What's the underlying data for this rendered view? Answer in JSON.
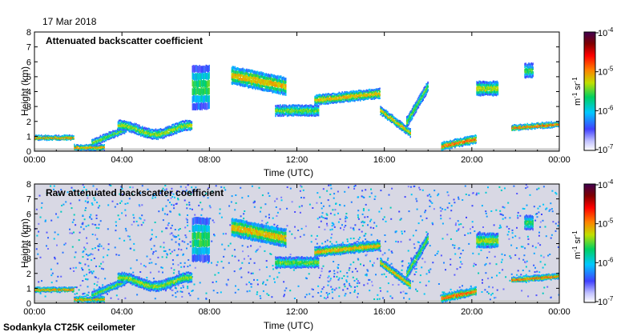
{
  "date": "17 Mar 2018",
  "footer": "Sodankyla CT25K ceilometer",
  "colors": {
    "background_clear": "#ffffff",
    "background_noise": "#d8d8e4",
    "frame": "#000000"
  },
  "chart_data": [
    {
      "type": "heatmap",
      "title": "Attenuated backscatter coefficient",
      "xlabel": "Time (UTC)",
      "ylabel": "Height (km)",
      "x_ticks": [
        "00:00",
        "04:00",
        "08:00",
        "12:00",
        "16:00",
        "20:00",
        "00:00"
      ],
      "xlim_hours": [
        0,
        24
      ],
      "y_ticks": [
        "0",
        "1",
        "2",
        "3",
        "4",
        "5",
        "6",
        "7",
        "8"
      ],
      "ylim_km": [
        0,
        8
      ],
      "colorbar": {
        "scale": "log",
        "unit_base": "m",
        "unit_base2": "sr",
        "unit_exp": "-1",
        "tick_base": "10",
        "tick_exps": [
          "-4",
          "-5",
          "-6",
          "-7"
        ],
        "range": [
          1e-07,
          0.0001
        ],
        "colors": [
          "#ffffff",
          "#4040ff",
          "#00c8ff",
          "#00d060",
          "#c0e000",
          "#ff8000",
          "#ff0000",
          "#800000",
          "#400050"
        ]
      },
      "noise_background": false
    },
    {
      "type": "heatmap",
      "title": "Raw attenuated backscatter coefficient",
      "xlabel": "Time (UTC)",
      "ylabel": "Height (km)",
      "x_ticks": [
        "00:00",
        "04:00",
        "08:00",
        "12:00",
        "16:00",
        "20:00",
        "00:00"
      ],
      "xlim_hours": [
        0,
        24
      ],
      "y_ticks": [
        "0",
        "1",
        "2",
        "3",
        "4",
        "5",
        "6",
        "7",
        "8"
      ],
      "ylim_km": [
        0,
        8
      ],
      "colorbar": {
        "scale": "log",
        "unit_base": "m",
        "unit_base2": "sr",
        "unit_exp": "-1",
        "tick_base": "10",
        "tick_exps": [
          "-4",
          "-5",
          "-6",
          "-7"
        ],
        "range": [
          1e-07,
          0.0001
        ],
        "colors": [
          "#ffffff",
          "#4040ff",
          "#00c8ff",
          "#00d060",
          "#c0e000",
          "#ff8000",
          "#ff0000",
          "#800000",
          "#400050"
        ]
      },
      "noise_background": true
    }
  ]
}
